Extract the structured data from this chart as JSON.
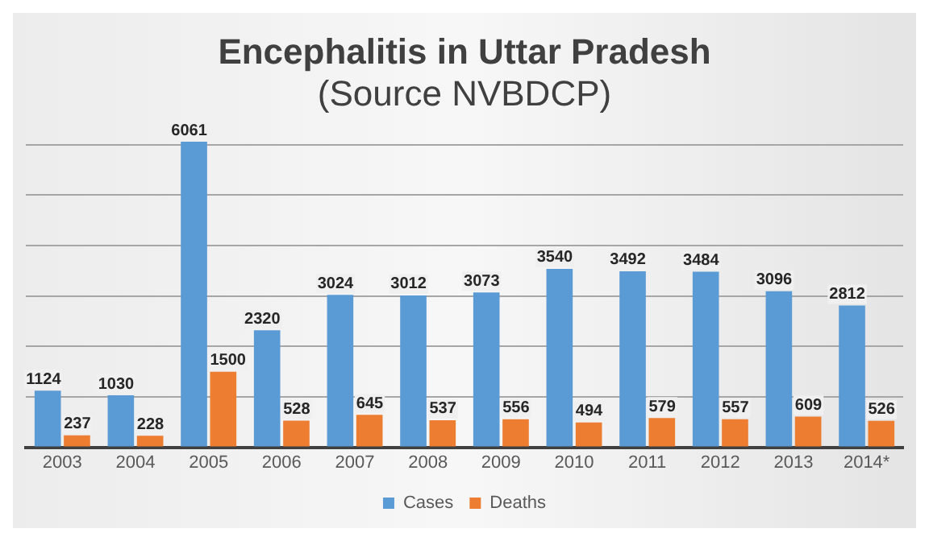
{
  "chart_data": {
    "type": "bar",
    "title": "Encephalitis in Uttar Pradesh",
    "subtitle": "(Source NVBDCP)",
    "categories": [
      "2003",
      "2004",
      "2005",
      "2006",
      "2007",
      "2008",
      "2009",
      "2010",
      "2011",
      "2012",
      "2013",
      "2014*"
    ],
    "series": [
      {
        "name": "Cases",
        "color": "#5b9bd5",
        "values": [
          1124,
          1030,
          6061,
          2320,
          3024,
          3012,
          3073,
          3540,
          3492,
          3484,
          3096,
          2812
        ]
      },
      {
        "name": "Deaths",
        "color": "#ed7d31",
        "values": [
          237,
          228,
          1500,
          528,
          645,
          537,
          556,
          494,
          579,
          557,
          609,
          526
        ]
      }
    ],
    "ylim": [
      0,
      6100
    ],
    "yticks": [
      0,
      1000,
      2000,
      3000,
      4000,
      5000,
      6000
    ],
    "grid": "y",
    "tick_labels": "x",
    "legend": "bottom",
    "data_labels": true
  }
}
